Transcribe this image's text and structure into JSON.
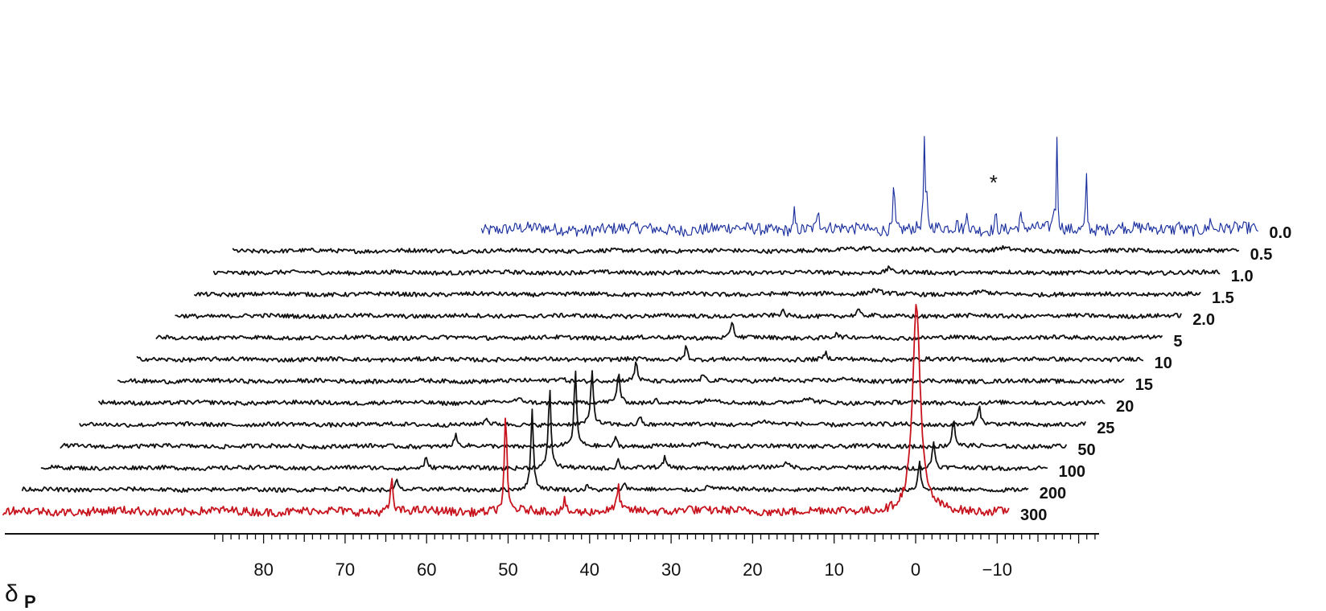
{
  "chart_data": {
    "type": "line",
    "subtype": "stacked-spectra",
    "xlabel": "δ",
    "xlabel_subscript": "P",
    "xlim": [
      87,
      -22
    ],
    "x_ticks": [
      80,
      70,
      60,
      50,
      40,
      30,
      20,
      10,
      0,
      -10
    ],
    "x_tick_labels": [
      "80",
      "70",
      "60",
      "50",
      "40",
      "30",
      "20",
      "10",
      "0",
      "−10"
    ],
    "grid": false,
    "legend": "none",
    "colors": {
      "blue": "#1a2f9e",
      "black": "#111111",
      "red": "#c8141e"
    },
    "annotation": {
      "text": "*",
      "x": 20.7
    },
    "series": [
      {
        "name": "0.0",
        "color": "blue",
        "peaks": [
          [
            45.4,
            0.35
          ],
          [
            42.5,
            0.55
          ],
          [
            37.3,
            0.12
          ],
          [
            33.2,
            1.0
          ],
          [
            29.5,
            1.6
          ],
          [
            29.2,
            0.55
          ],
          [
            25.5,
            0.2
          ],
          [
            24.2,
            0.45
          ],
          [
            20.7,
            0.35
          ],
          [
            17.7,
            0.32
          ],
          [
            13.6,
            0.4
          ],
          [
            13.2,
            1.5
          ],
          [
            9.6,
            1.0
          ],
          [
            5.3,
            0.1
          ],
          [
            -1.7,
            0.28
          ],
          [
            -5.6,
            0.24
          ]
        ]
      },
      {
        "name": "0.5",
        "color": "black",
        "peaks": [
          [
            36.4,
            0.04
          ],
          [
            34.2,
            0.06
          ],
          [
            28.1,
            0.03
          ],
          [
            22.5,
            0.045
          ],
          [
            17.5,
            0.05
          ]
        ]
      },
      {
        "name": "1.0",
        "color": "black",
        "peaks": [
          [
            29.1,
            0.12
          ]
        ]
      },
      {
        "name": "1.5",
        "color": "black",
        "peaks": [
          [
            34.2,
            0.035
          ],
          [
            28.5,
            0.06
          ],
          [
            15.3,
            0.04
          ]
        ]
      },
      {
        "name": "2.0",
        "color": "black",
        "peaks": [
          [
            37.5,
            0.1
          ],
          [
            28.2,
            0.11
          ]
        ]
      },
      {
        "name": "5",
        "color": "black",
        "peaks": [
          [
            41.3,
            0.3
          ],
          [
            28.5,
            0.1
          ]
        ]
      },
      {
        "name": "10",
        "color": "black",
        "peaks": [
          [
            44.6,
            0.25
          ],
          [
            27.5,
            0.12
          ]
        ]
      },
      {
        "name": "15",
        "color": "black",
        "peaks": [
          [
            48.4,
            0.35
          ],
          [
            57.8,
            0.05
          ],
          [
            40.2,
            0.13
          ],
          [
            31.2,
            0.04
          ],
          [
            22.4,
            0.05
          ]
        ]
      },
      {
        "name": "20",
        "color": "black",
        "peaks": [
          [
            48.2,
            0.55
          ],
          [
            60.4,
            0.05
          ],
          [
            43.6,
            0.12
          ],
          [
            36.6,
            0.06
          ],
          [
            25.2,
            0.07
          ]
        ]
      },
      {
        "name": "25",
        "color": "black",
        "peaks": [
          [
            49.1,
            0.95
          ],
          [
            62.1,
            0.12
          ],
          [
            43.2,
            0.16
          ],
          [
            28.1,
            0.06
          ],
          [
            1.6,
            0.35
          ]
        ]
      },
      {
        "name": "50",
        "color": "black",
        "peaks": [
          [
            48.8,
            1.3
          ],
          [
            63.5,
            0.2
          ],
          [
            43.8,
            0.17
          ],
          [
            33.0,
            0.06
          ],
          [
            2.4,
            0.5
          ]
        ]
      },
      {
        "name": "100",
        "color": "black",
        "peaks": [
          [
            49.6,
            1.4
          ],
          [
            64.8,
            0.18
          ],
          [
            41.2,
            0.15
          ],
          [
            35.5,
            0.18
          ],
          [
            20.6,
            0.07
          ],
          [
            2.5,
            0.48
          ]
        ]
      },
      {
        "name": "200",
        "color": "black",
        "peaks": [
          [
            49.4,
            1.4
          ],
          [
            66.0,
            0.18
          ],
          [
            42.6,
            0.1
          ],
          [
            38.0,
            0.12
          ],
          [
            27.6,
            0.05
          ],
          [
            1.9,
            0.5
          ]
        ]
      },
      {
        "name": "300",
        "color": "red",
        "peaks": [
          [
            64.3,
            0.55
          ],
          [
            50.3,
            1.65
          ],
          [
            43.1,
            0.2
          ],
          [
            36.5,
            0.45
          ],
          [
            28.0,
            0.07
          ],
          [
            -0.1,
            3.6
          ]
        ]
      }
    ]
  }
}
